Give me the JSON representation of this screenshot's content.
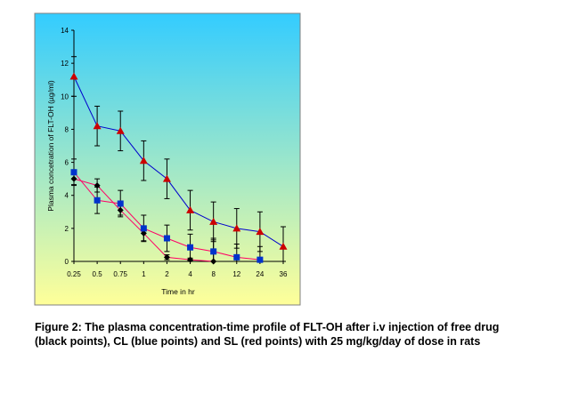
{
  "chart_data": {
    "type": "line",
    "title": "",
    "xlabel": "Time in hr",
    "ylabel": "Plasma concetration of FLT-OH (µg/ml)",
    "categories": [
      "0.25",
      "0.5",
      "0.75",
      "1",
      "2",
      "4",
      "8",
      "12",
      "24",
      "36"
    ],
    "yticks": [
      "0",
      "2",
      "4",
      "6",
      "8",
      "10",
      "12",
      "14"
    ],
    "ylim": [
      0,
      14
    ],
    "grid": false,
    "legend": "none",
    "background_gradient": [
      "#33ccff",
      "#ffff99"
    ],
    "series": [
      {
        "marker": "diamond",
        "color": "#000000",
        "line_color": "#ff0066",
        "values": [
          5.0,
          4.6,
          3.1,
          1.7,
          0.25,
          0.1,
          0.0,
          null,
          null,
          null
        ],
        "errors": [
          0.35,
          0.4,
          0.3,
          0.45,
          0.15,
          0.1,
          1.3,
          null,
          null,
          null
        ]
      },
      {
        "marker": "square",
        "color": "#0033cc",
        "line_color": "#ff0066",
        "values": [
          5.4,
          3.7,
          3.5,
          2.0,
          1.4,
          0.85,
          0.6,
          0.25,
          0.1,
          null
        ],
        "errors": [
          0.8,
          0.8,
          0.8,
          0.8,
          0.8,
          0.8,
          0.8,
          0.8,
          0.8,
          null
        ]
      },
      {
        "marker": "triangle",
        "color": "#cc0000",
        "line_color": "#0000cc",
        "values": [
          11.2,
          8.2,
          7.9,
          6.1,
          5.0,
          3.1,
          2.4,
          2.0,
          1.8,
          0.9
        ],
        "errors": [
          1.2,
          1.2,
          1.2,
          1.2,
          1.2,
          1.2,
          1.2,
          1.2,
          1.2,
          1.2
        ]
      }
    ]
  },
  "caption": "Figure 2: The plasma concentration-time profile of FLT-OH after i.v injection of free drug (black points), CL (blue points) and SL (red points) with 25 mg/kg/day of dose in rats"
}
